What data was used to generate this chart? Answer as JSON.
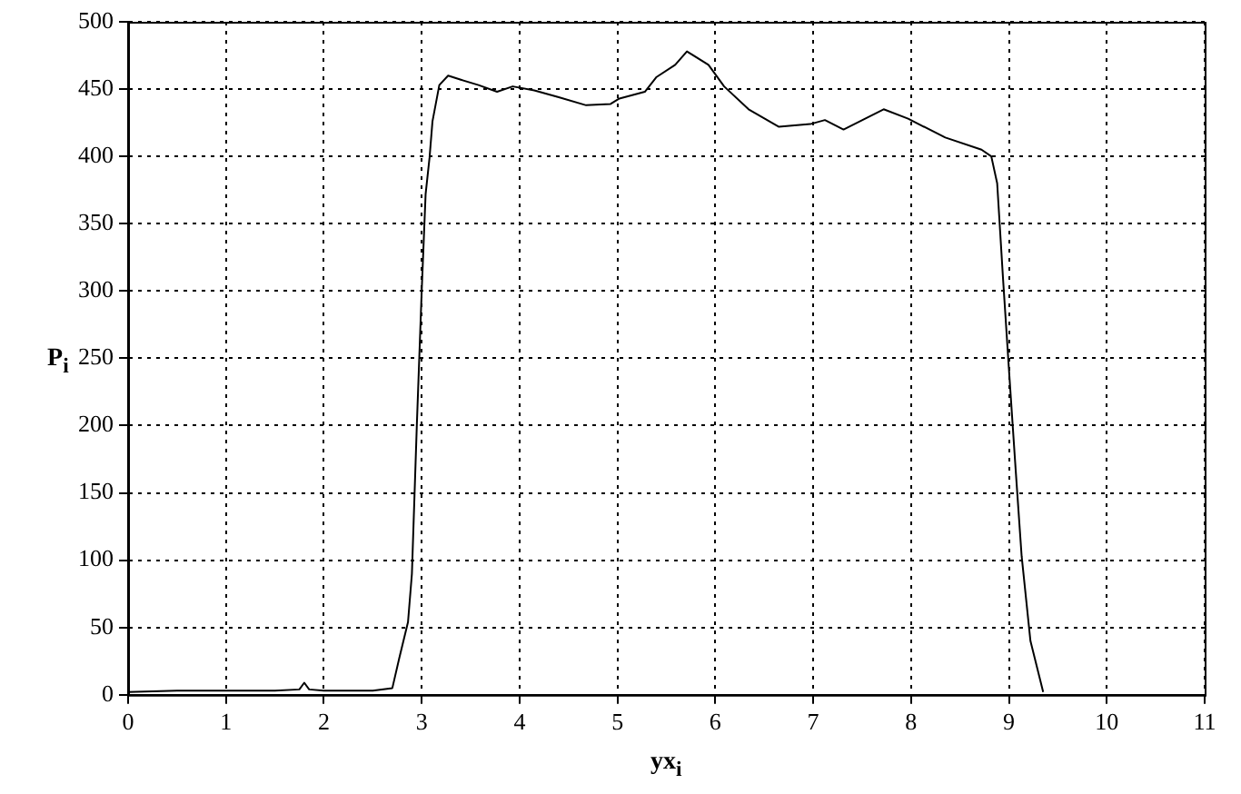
{
  "chart_data": {
    "type": "line",
    "xlabel": "yx$_{i}$",
    "ylabel": "P$_{i}$",
    "xlim": [
      0,
      11
    ],
    "xticks": [
      0,
      1,
      2,
      3,
      4,
      5,
      6,
      7,
      8,
      9,
      10,
      11
    ],
    "ylim": [
      0,
      500
    ],
    "yticks": [
      0,
      50,
      100,
      150,
      200,
      250,
      300,
      350,
      400,
      450,
      500
    ],
    "grid": true,
    "series": [
      {
        "color": "#000000",
        "x": [
          0,
          0.5,
          1,
          1.5,
          1.75,
          1.8,
          1.85,
          2,
          2.5,
          2.7,
          2.77,
          2.86,
          2.9,
          2.95,
          3,
          3.04,
          3.08,
          3.11,
          3.18,
          3.27,
          3.4,
          3.58,
          3.77,
          3.93,
          4.15,
          4.4,
          4.68,
          4.93,
          5.02,
          5.28,
          5.4,
          5.59,
          5.71,
          5.93,
          6.09,
          6.34,
          6.65,
          6.97,
          7.12,
          7.31,
          7.72,
          7.97,
          8.35,
          8.72,
          8.82,
          8.88,
          8.94,
          9,
          9.07,
          9.13,
          9.22,
          9.35
        ],
        "values": [
          2,
          3,
          3,
          3,
          4,
          9,
          4,
          3,
          3,
          5,
          27,
          54,
          90,
          200,
          300,
          372,
          399,
          426,
          453,
          460,
          457,
          453,
          448,
          452,
          449,
          444,
          438,
          439,
          443,
          448,
          459,
          468,
          478,
          468,
          452,
          435,
          422,
          424,
          427,
          420,
          435,
          428,
          414,
          405,
          400,
          380,
          309,
          242,
          166,
          103,
          40,
          2
        ]
      }
    ]
  }
}
